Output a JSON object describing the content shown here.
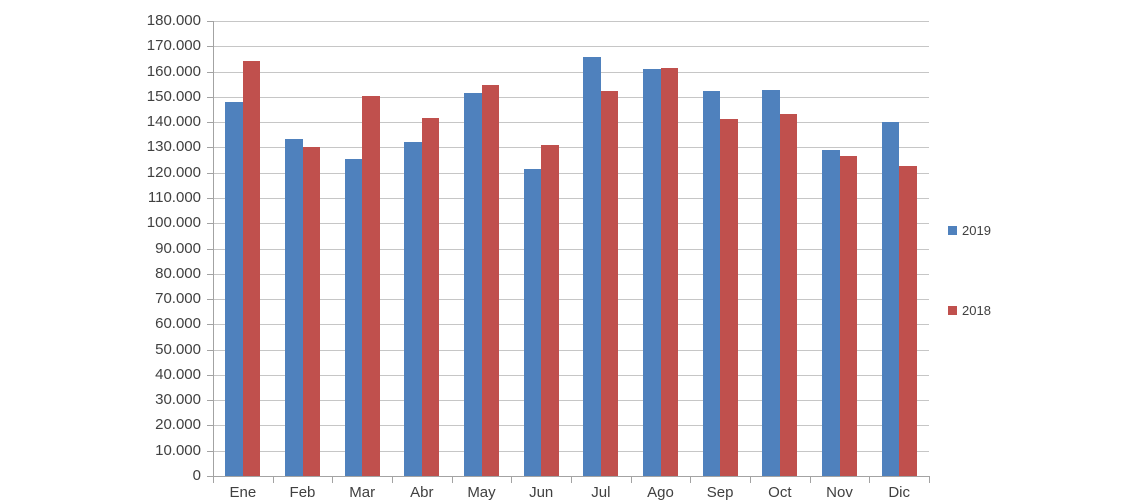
{
  "chart_data": {
    "type": "bar",
    "title": "",
    "xlabel": "",
    "ylabel": "",
    "categories": [
      "Ene",
      "Feb",
      "Mar",
      "Abr",
      "May",
      "Jun",
      "Jul",
      "Ago",
      "Sep",
      "Oct",
      "Nov",
      "Dic"
    ],
    "series": [
      {
        "name": "2019",
        "color": "#4F81BD",
        "values": [
          148000,
          133400,
          125600,
          132200,
          151600,
          121600,
          165800,
          161200,
          152300,
          152900,
          128800,
          140000
        ]
      },
      {
        "name": "2018",
        "color": "#C0504D",
        "values": [
          164300,
          130200,
          150300,
          141800,
          154700,
          130800,
          152300,
          161300,
          141400,
          143200,
          126400,
          122700
        ]
      }
    ],
    "ylim": [
      0,
      180000
    ],
    "ytick_step": 10000,
    "ytick_labels": [
      "0",
      "10.000",
      "20.000",
      "30.000",
      "40.000",
      "50.000",
      "60.000",
      "70.000",
      "80.000",
      "90.000",
      "100.000",
      "110.000",
      "120.000",
      "130.000",
      "140.000",
      "150.000",
      "160.000",
      "170.000",
      "180.000"
    ],
    "grid": true,
    "legend_position": "right"
  },
  "colors": {
    "grid": "#C6C6C6",
    "axis": "#A3A3A3",
    "text": "#404040",
    "background": "#FFFFFF"
  }
}
